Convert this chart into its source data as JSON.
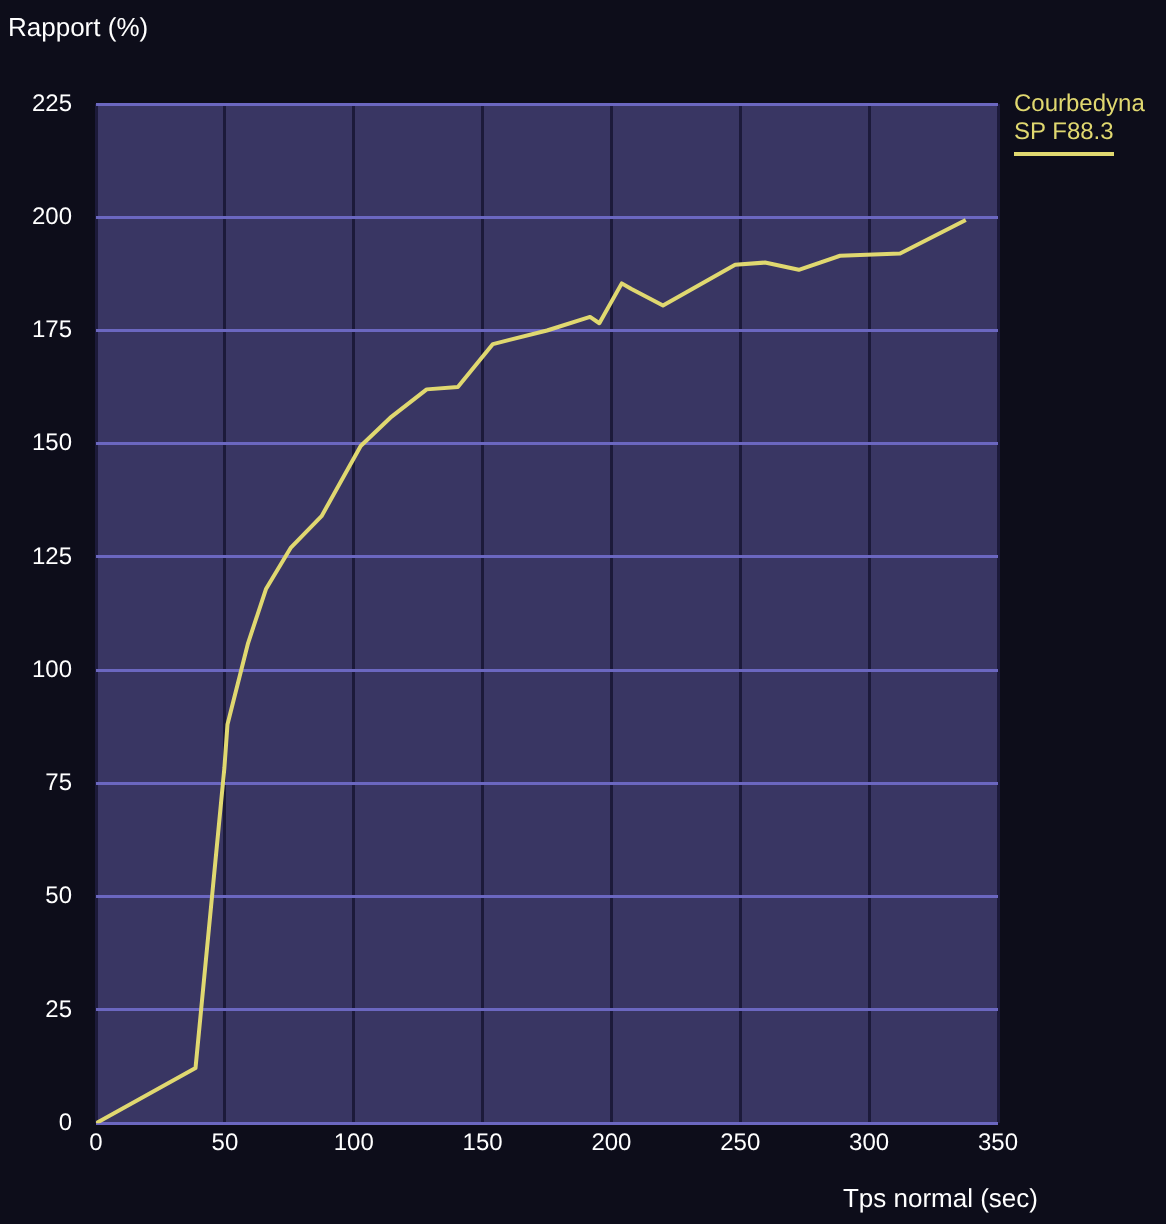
{
  "chart_data": {
    "type": "line",
    "ylabel": "Rapport (%)",
    "xlabel": "Tps normal (sec)",
    "series": [
      {
        "name": "Courbedyna SP F88.3",
        "color": "#e0d870",
        "x": [
          0,
          38.6,
          49.8,
          51,
          59,
          66,
          75.5,
          87.5,
          102.7,
          114.7,
          128.3,
          140.4,
          154,
          175,
          191.7,
          195.3,
          204,
          207.6,
          220,
          248,
          259.6,
          272.7,
          288.7,
          312,
          337.5
        ],
        "values": [
          0,
          12.2,
          78.4,
          88,
          106,
          118,
          127,
          134,
          149.5,
          156,
          162,
          162.5,
          172,
          175,
          178,
          176.6,
          185.4,
          184.2,
          180.5,
          189.5,
          190,
          188.4,
          191.5,
          192,
          199.4
        ]
      }
    ],
    "xlim": [
      0,
      350
    ],
    "xticks": [
      0,
      50,
      100,
      150,
      200,
      250,
      300,
      350
    ],
    "ylim": [
      0,
      225
    ],
    "yticks": [
      0,
      25,
      50,
      75,
      100,
      125,
      150,
      175,
      200,
      225
    ],
    "grid": true,
    "legend": "right",
    "marker": "none",
    "line_style": "solid"
  }
}
